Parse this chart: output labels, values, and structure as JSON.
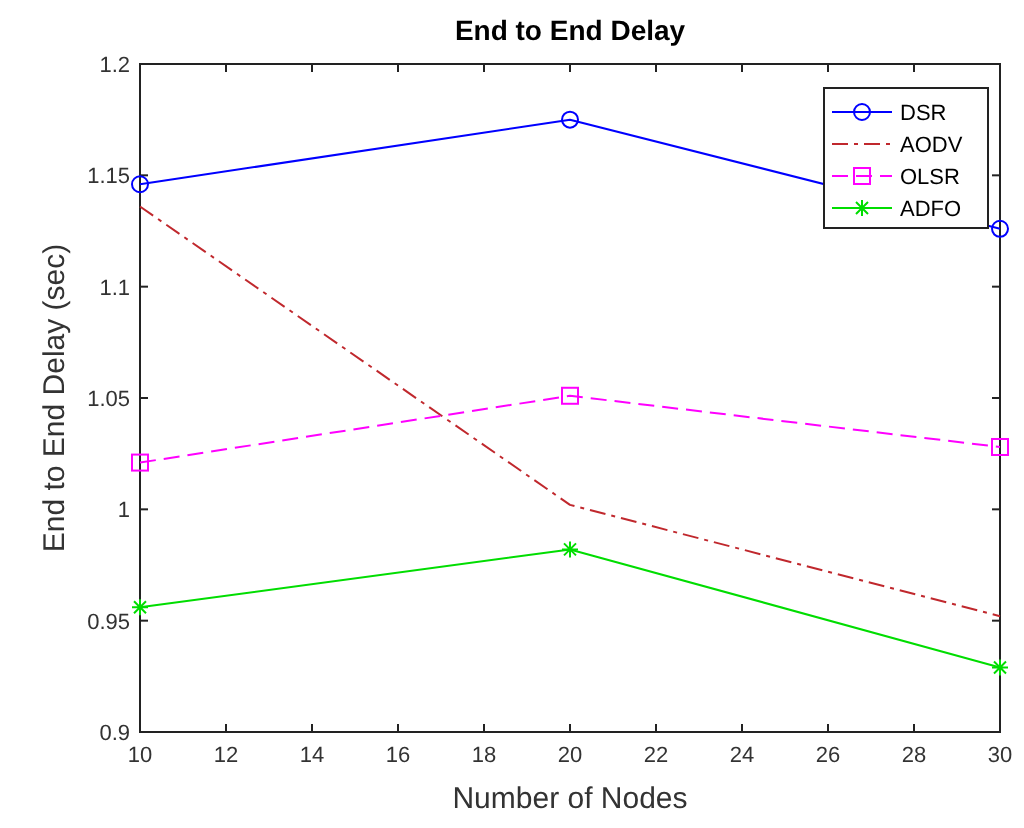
{
  "chart_data": {
    "type": "line",
    "title": "End to End Delay",
    "xlabel": "Number of Nodes",
    "ylabel": "End to End Delay (sec)",
    "x": [
      10,
      20,
      30
    ],
    "xlim": [
      10,
      30
    ],
    "xticks": [
      10,
      12,
      14,
      16,
      18,
      20,
      22,
      24,
      26,
      28,
      30
    ],
    "ylim": [
      0.9,
      1.2
    ],
    "yticks": [
      0.9,
      0.95,
      1,
      1.05,
      1.1,
      1.15,
      1.2
    ],
    "grid": false,
    "legend": "top right",
    "series": [
      {
        "name": "DSR",
        "color": "#0000ff",
        "values": [
          1.146,
          1.175,
          1.126
        ],
        "marker": "circle",
        "line_style": "solid"
      },
      {
        "name": "AODV",
        "color": "#c0282d",
        "values": [
          1.136,
          1.002,
          0.952
        ],
        "marker": "none",
        "line_style": "dashdot"
      },
      {
        "name": "OLSR",
        "color": "#ff00ff",
        "values": [
          1.021,
          1.051,
          1.028
        ],
        "marker": "square",
        "line_style": "dashed"
      },
      {
        "name": "ADFO",
        "color": "#00dd00",
        "values": [
          0.956,
          0.982,
          0.929
        ],
        "marker": "cross",
        "line_style": "solid"
      }
    ]
  }
}
